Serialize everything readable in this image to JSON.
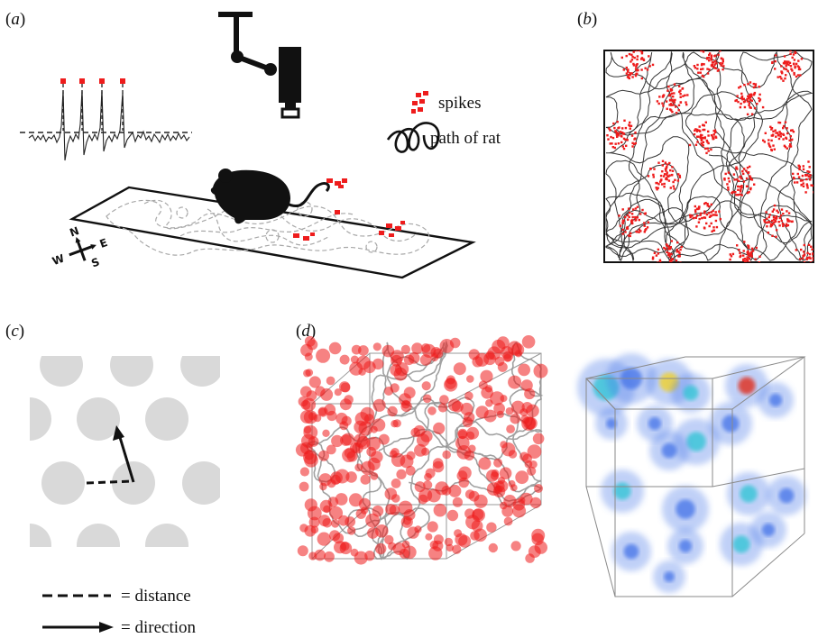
{
  "panels": {
    "a": {
      "label": "a",
      "legend_spikes": "spikes",
      "legend_path": "path of rat",
      "compass": {
        "n": "N",
        "e": "E",
        "s": "S",
        "w": "W"
      }
    },
    "b": {
      "label": "b"
    },
    "c": {
      "label": "c",
      "legend_distance": "= distance",
      "legend_direction": "= direction"
    },
    "d": {
      "label": "d"
    }
  },
  "colors": {
    "spike": "#ee1c1c",
    "path": "#111111",
    "grid_field": "#d9d9d9",
    "trajectory_3d": "#8a8a8a",
    "heat_low": "#4a78e8",
    "heat_mid": "#36c4d6",
    "heat_high": "#f0d12a",
    "heat_peak": "#e02b1a"
  },
  "icons": {
    "rat": "rat-silhouette-icon",
    "camera": "overhead-camera-icon",
    "compass": "compass-rose-icon"
  }
}
